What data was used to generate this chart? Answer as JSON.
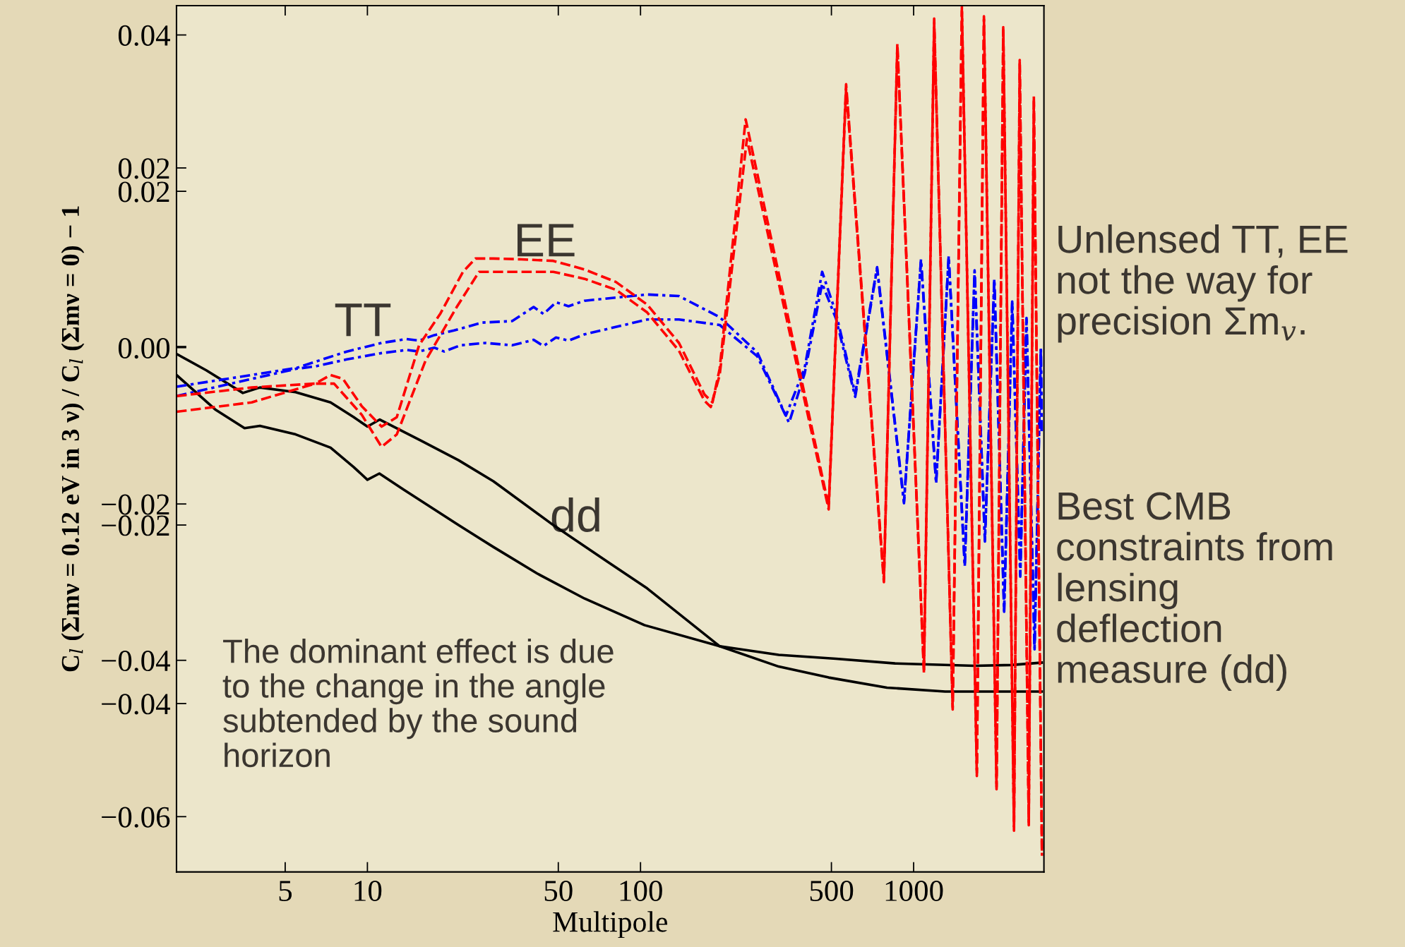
{
  "chart_data": {
    "type": "line",
    "xlabel": "Multipole",
    "y2label": "C$_{l}$ (Σmν = 0.12 eV in 3 ν) / C$_{l}$ (Σmν = 0) − 1",
    "log": "x",
    "xlim": [
      2,
      3000
    ],
    "xticks": [
      5,
      10,
      50,
      100,
      500,
      1000
    ],
    "ylim": [
      -0.06707,
      0.04375
    ],
    "yticks": [
      0.04,
      0.02,
      {
        "value": 0,
        "label": "0.00"
      },
      {
        "value": -0.02,
        "label": "−0.02"
      },
      {
        "value": -0.04,
        "label": "−0.04"
      },
      {
        "value": -0.06,
        "label": "−0.06"
      }
    ],
    "y2lim": [
      -0.05886,
      0.03818
    ],
    "y2ticks": [
      0.02,
      {
        "value": 0,
        "label": null
      },
      {
        "value": -0.02,
        "label": "−0.02"
      },
      {
        "value": -0.04,
        "label": "−0.04"
      }
    ],
    "series": [
      {
        "color": "#000000",
        "line_style": "solid",
        "x": [
          2,
          2.57,
          3.5,
          4.04,
          5.46,
          7.33,
          8.92,
          10.0,
          11.1,
          15.7,
          21.55,
          28.93,
          47.93,
          76.5,
          105.8,
          194.9,
          320.6,
          488.6,
          798.6,
          1304,
          2944
        ],
        "values": [
          -0.0008,
          -0.0029,
          -0.0058,
          -0.0051,
          -0.0057,
          -0.007,
          -0.0089,
          -0.0101,
          -0.0092,
          -0.0119,
          -0.0144,
          -0.0171,
          -0.0227,
          -0.0275,
          -0.0308,
          -0.0382,
          -0.0408,
          -0.0422,
          -0.0435,
          -0.044,
          -0.044
        ]
      },
      {
        "color": "#000000",
        "line_style": "solid",
        "x": [
          2,
          2.77,
          3.55,
          4.04,
          5.46,
          7.33,
          8.92,
          10.0,
          11.06,
          13.5,
          21.55,
          28.93,
          41.86,
          62.4,
          103.4,
          194.9,
          320.6,
          519.7,
          855,
          1672,
          2279,
          2944
        ],
        "values": [
          -0.0035,
          -0.0079,
          -0.0103,
          -0.01,
          -0.0111,
          -0.0128,
          -0.0153,
          -0.0169,
          -0.0161,
          -0.0181,
          -0.0227,
          -0.0255,
          -0.0289,
          -0.0321,
          -0.0355,
          -0.0382,
          -0.0393,
          -0.0398,
          -0.0404,
          -0.0407,
          -0.0406,
          -0.0403
        ]
      },
      {
        "color": "#0000ff",
        "line_style": "dashdot",
        "x": [
          2,
          5.5,
          6.45,
          8.4,
          11.27,
          13.92,
          15.46,
          17.58,
          20.76,
          26.22,
          33.88,
          40.61,
          44.13,
          49.03,
          54.5,
          62.4,
          105.8,
          138.3,
          194.9,
          267.6,
          340.6,
          399.0,
          462.4,
          519.7,
          611.1,
          735,
          921.8,
          1064,
          1209,
          1344,
          1539,
          1672,
          1824,
          1974,
          2145,
          2296,
          2457,
          2590,
          2772,
          2923,
          2944
        ],
        "values": [
          -0.005,
          -0.0026,
          -0.0018,
          -0.0005,
          0.0006,
          0.0011,
          0.0009,
          0.0016,
          0.0022,
          0.0032,
          0.0034,
          0.0052,
          0.0043,
          0.0058,
          0.0053,
          0.006,
          0.0068,
          0.0066,
          0.0039,
          -0.0006,
          -0.0087,
          -0.0026,
          0.0097,
          0.0044,
          -0.0059,
          0.0103,
          -0.0197,
          0.0113,
          -0.0172,
          0.0117,
          -0.0278,
          0.0099,
          -0.0246,
          0.0088,
          -0.0336,
          0.0059,
          -0.0291,
          0.0038,
          -0.0384,
          -0.0001,
          -0.0107
        ]
      },
      {
        "color": "#0000ff",
        "line_style": "dashdot",
        "x": [
          2,
          5.5,
          6.45,
          8.4,
          11.27,
          13.92,
          15.46,
          17.58,
          19.1,
          21.88,
          27.03,
          33.88,
          40.61,
          44.13,
          49.03,
          54.5,
          62.4,
          105.8,
          138.3,
          194.9,
          267.6,
          349.9,
          399.0,
          462.4,
          519.7,
          611.1,
          735,
          921.8,
          1064,
          1209,
          1344,
          1539,
          1672,
          1824,
          1974,
          2145,
          2296,
          2457,
          2590,
          2772,
          2923,
          2944
        ],
        "values": [
          -0.0062,
          -0.0027,
          -0.0024,
          -0.0015,
          -0.0007,
          -0.0003,
          -0.0005,
          0.0,
          -0.0005,
          0.0003,
          0.0006,
          0.0003,
          0.001,
          0.0002,
          0.0013,
          0.0009,
          0.0017,
          0.0036,
          0.0036,
          0.0029,
          -0.0011,
          -0.0096,
          -0.0033,
          0.0082,
          0.0037,
          -0.0063,
          0.0101,
          -0.0199,
          0.0111,
          -0.0174,
          0.0115,
          -0.028,
          0.0097,
          -0.0248,
          0.0086,
          -0.0338,
          0.0057,
          -0.0293,
          0.0036,
          -0.0386,
          -0.0003,
          -0.0109
        ]
      },
      {
        "color": "#ff0000",
        "line_style": "dashed",
        "x": [
          2,
          3.77,
          6.45,
          7.33,
          8.14,
          9.54,
          11.27,
          12.81,
          15.46,
          18.53,
          22.38,
          24.87,
          28.93,
          36.54,
          47.93,
          62.4,
          81.3,
          105.8,
          138.3,
          171.5,
          183.5,
          194.9,
          242.6,
          488.6,
          565.9,
          778.3,
          871.7,
          1091,
          1189,
          1390,
          1502,
          1704,
          1809,
          2012,
          2129,
          2331,
          2446,
          2640,
          2755,
          2951
        ],
        "values": [
          -0.0062,
          -0.0051,
          -0.0046,
          -0.0035,
          -0.004,
          -0.0075,
          -0.0101,
          -0.0089,
          0.0003,
          0.0044,
          0.0097,
          0.0114,
          0.0114,
          0.0113,
          0.0111,
          0.01,
          0.0084,
          0.0055,
          0.0006,
          -0.006,
          -0.007,
          -0.0027,
          0.0292,
          -0.0203,
          0.0337,
          -0.0296,
          0.0389,
          -0.0412,
          0.0421,
          -0.046,
          0.0436,
          -0.0544,
          0.0424,
          -0.0562,
          0.041,
          -0.0615,
          0.0368,
          -0.0607,
          0.0322,
          -0.0649
        ]
      },
      {
        "color": "#ff0000",
        "line_style": "dashed",
        "x": [
          2,
          3.77,
          6.45,
          7.55,
          9.54,
          11.27,
          12.81,
          16.31,
          21.24,
          25.63,
          28.93,
          47.93,
          62.4,
          81.3,
          105.8,
          138.3,
          171.5,
          180.8,
          194.9,
          245.2,
          488.6,
          565.9,
          778.3,
          871.7,
          1091,
          1189,
          1390,
          1502,
          1704,
          1809,
          2012,
          2129,
          2331,
          2446,
          2640,
          2755,
          2951
        ],
        "values": [
          -0.0082,
          -0.007,
          -0.0046,
          -0.0046,
          -0.0086,
          -0.0127,
          -0.0111,
          -0.0017,
          0.0052,
          0.0097,
          0.0097,
          0.0097,
          0.0088,
          0.0074,
          0.0045,
          -0.0004,
          -0.0068,
          -0.0076,
          -0.0035,
          0.0267,
          -0.0207,
          0.0331,
          -0.03,
          0.0385,
          -0.0417,
          0.0415,
          -0.0463,
          0.0431,
          -0.0548,
          0.042,
          -0.0565,
          0.0406,
          -0.0618,
          0.0363,
          -0.0611,
          0.0315,
          -0.065
        ]
      }
    ],
    "annotations": [
      "TT",
      "EE",
      "dd",
      "The dominant effect is due\nto the change in the angle\nsubtended by the sound\nhorizon",
      "Unlensed TT, EE\nnot the way for\nprecision Σm$_{v}$.",
      "Best CMB\nconstraints from\nlensing\ndeflection\nmeasure (dd)"
    ]
  }
}
